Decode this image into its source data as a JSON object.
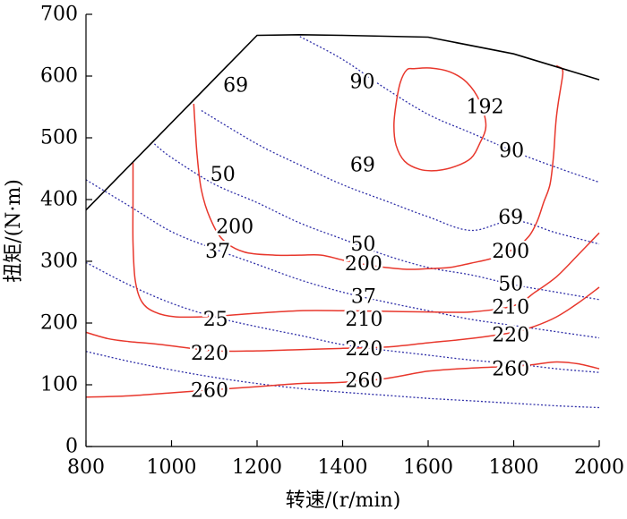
{
  "chart_data": {
    "type": "line",
    "title": "",
    "xlabel": "转速/(r/min)",
    "ylabel": "扭矩/(N·m)",
    "xlim": [
      800,
      2000
    ],
    "ylim": [
      0,
      700
    ],
    "xticks": [
      800,
      1000,
      1200,
      1400,
      1600,
      1800,
      2000
    ],
    "yticks": [
      0,
      100,
      200,
      300,
      400,
      500,
      600,
      700
    ],
    "grid": false,
    "colors": {
      "envelope": "#000000",
      "bsfc": "#e8372c",
      "power": "#2f2fa8",
      "axis": "#000000"
    },
    "envelope": {
      "x": [
        800,
        1200,
        1300,
        1400,
        1600,
        1800,
        2000
      ],
      "y": [
        383,
        666,
        667,
        666,
        663,
        636,
        594
      ]
    },
    "bsfc_contours": [
      {
        "label": "192",
        "closed": true,
        "x": [
          1567,
          1605,
          1650,
          1690,
          1720,
          1735,
          1720,
          1700,
          1665,
          1620,
          1580,
          1545,
          1525,
          1520,
          1525,
          1535,
          1550
        ],
        "y": [
          612,
          613,
          607,
          590,
          560,
          520,
          490,
          467,
          454,
          447,
          449,
          462,
          488,
          520,
          555,
          590,
          610
        ]
      },
      {
        "label": "200",
        "closed": false,
        "x": [
          1052,
          1055,
          1060,
          1070,
          1090,
          1120,
          1170,
          1240,
          1300,
          1350,
          1400,
          1450,
          1500,
          1550,
          1600,
          1650,
          1700,
          1750,
          1800,
          1835,
          1855,
          1870,
          1885,
          1893,
          1897,
          1900,
          1905,
          1912,
          1915,
          1913,
          1905,
          1900
        ],
        "y": [
          555,
          520,
          470,
          415,
          370,
          335,
          315,
          310,
          310,
          310,
          302,
          295,
          290,
          287,
          288,
          290,
          297,
          305,
          320,
          340,
          365,
          395,
          425,
          470,
          510,
          535,
          560,
          590,
          605,
          612,
          615,
          617
        ]
      },
      {
        "label": "210",
        "closed": false,
        "x": [
          910,
          910,
          910,
          915,
          930,
          960,
          1010,
          1100,
          1200,
          1300,
          1400,
          1500,
          1600,
          1700,
          1800,
          1850,
          1900,
          1950,
          2000
        ],
        "y": [
          460,
          400,
          330,
          270,
          235,
          218,
          210,
          211,
          216,
          220,
          220,
          219,
          218,
          218,
          228,
          250,
          275,
          310,
          346
        ]
      },
      {
        "label": "220",
        "closed": false,
        "x": [
          800,
          850,
          900,
          950,
          1000,
          1100,
          1200,
          1300,
          1400,
          1500,
          1600,
          1700,
          1800,
          1850,
          1900,
          1950,
          2000
        ],
        "y": [
          185,
          175,
          170,
          167,
          163,
          155,
          155,
          157,
          159,
          161,
          168,
          175,
          185,
          195,
          210,
          232,
          258
        ]
      },
      {
        "label": "260",
        "closed": false,
        "x": [
          800,
          900,
          1000,
          1100,
          1200,
          1300,
          1400,
          1500,
          1600,
          1700,
          1800,
          1850,
          1900,
          1950,
          2000
        ],
        "y": [
          80,
          82,
          87,
          92,
          97,
          102,
          104,
          110,
          122,
          127,
          130,
          133,
          137,
          134,
          126
        ]
      }
    ],
    "power_contours": [
      {
        "label": "90",
        "x": [
          1300,
          1400,
          1500,
          1600,
          1700,
          1800,
          1900,
          2000
        ],
        "y": [
          664,
          627,
          580,
          538,
          508,
          478,
          452,
          428
        ]
      },
      {
        "label": "69",
        "x": [
          1070,
          1200,
          1300,
          1400,
          1500,
          1600,
          1700,
          1800,
          1900,
          2000
        ],
        "y": [
          544,
          490,
          456,
          424,
          398,
          372,
          350,
          366,
          346,
          328
        ]
      },
      {
        "label": "50",
        "x": [
          960,
          1000,
          1100,
          1200,
          1300,
          1400,
          1500,
          1600,
          1700,
          1800,
          1900,
          2000
        ],
        "y": [
          490,
          468,
          425,
          395,
          362,
          336,
          310,
          290,
          278,
          262,
          250,
          238
        ]
      },
      {
        "label": "37",
        "x": [
          800,
          900,
          1000,
          1100,
          1200,
          1300,
          1400,
          1500,
          1600,
          1700,
          1800,
          1900,
          2000
        ],
        "y": [
          432,
          390,
          348,
          320,
          295,
          270,
          250,
          234,
          220,
          206,
          196,
          186,
          176
        ]
      },
      {
        "label": "25",
        "x": [
          800,
          900,
          1000,
          1100,
          1200,
          1300,
          1400,
          1500,
          1600,
          1700,
          1800,
          1900,
          2000
        ],
        "y": [
          298,
          262,
          232,
          210,
          194,
          180,
          165,
          156,
          148,
          140,
          134,
          126,
          120
        ]
      },
      {
        "label": "",
        "x": [
          800,
          900,
          1000,
          1100,
          1200,
          1300,
          1400,
          1500,
          1600,
          1700,
          1800,
          1900,
          2000
        ],
        "y": [
          154,
          138,
          124,
          112,
          102,
          94,
          88,
          83,
          78,
          74,
          70,
          66,
          63
        ]
      }
    ],
    "annotations": [
      {
        "text": "69",
        "x": 1150,
        "y": 584
      },
      {
        "text": "90",
        "x": 1446,
        "y": 590
      },
      {
        "text": "192",
        "x": 1733,
        "y": 549
      },
      {
        "text": "90",
        "x": 1795,
        "y": 478
      },
      {
        "text": "69",
        "x": 1447,
        "y": 455
      },
      {
        "text": "50",
        "x": 1120,
        "y": 440
      },
      {
        "text": "69",
        "x": 1793,
        "y": 370
      },
      {
        "text": "200",
        "x": 1148,
        "y": 355
      },
      {
        "text": "37",
        "x": 1108,
        "y": 315
      },
      {
        "text": "50",
        "x": 1448,
        "y": 327
      },
      {
        "text": "200",
        "x": 1793,
        "y": 315
      },
      {
        "text": "200",
        "x": 1449,
        "y": 295
      },
      {
        "text": "50",
        "x": 1793,
        "y": 262
      },
      {
        "text": "37",
        "x": 1449,
        "y": 242
      },
      {
        "text": "210",
        "x": 1793,
        "y": 225
      },
      {
        "text": "25",
        "x": 1103,
        "y": 205
      },
      {
        "text": "210",
        "x": 1450,
        "y": 205
      },
      {
        "text": "220",
        "x": 1793,
        "y": 180
      },
      {
        "text": "220",
        "x": 1089,
        "y": 150
      },
      {
        "text": "220",
        "x": 1450,
        "y": 157
      },
      {
        "text": "260",
        "x": 1793,
        "y": 125
      },
      {
        "text": "260",
        "x": 1450,
        "y": 106
      },
      {
        "text": "260",
        "x": 1089,
        "y": 90
      }
    ]
  }
}
